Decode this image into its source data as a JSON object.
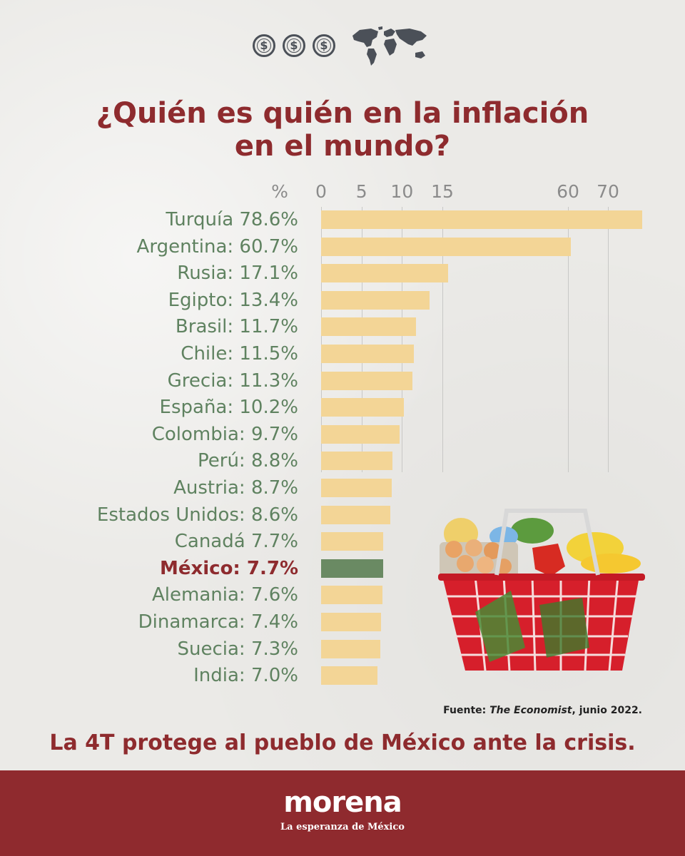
{
  "title": {
    "line1": "¿Quién es quién en la inflación",
    "line2": "en el mundo?"
  },
  "icons": {
    "coins": [
      "dollar-coin-icon",
      "dollar-coin-icon",
      "dollar-coin-icon"
    ],
    "coin_symbol": "$",
    "world": "world-map-icon",
    "basket": "shopping-basket-icon"
  },
  "colors": {
    "title": "#8e2b2e",
    "label": "#5f8260",
    "bar": "#f3d596",
    "highlight_bar": "#6a8a63",
    "footer": "#8f2a2e"
  },
  "chart_data": {
    "type": "bar",
    "orientation": "horizontal",
    "unit_label": "%",
    "x_ticks": [
      0,
      5,
      10,
      15,
      60,
      70
    ],
    "grid": true,
    "categories": [
      "Turquía",
      "Argentina",
      "Rusia",
      "Egipto",
      "Brasil",
      "Chile",
      "Grecia",
      "España",
      "Colombia",
      "Perú",
      "Austria",
      "Estados Unidos",
      "Canadá",
      "México",
      "Alemania",
      "Dinamarca",
      "Suecia",
      "India"
    ],
    "labels": [
      "Turquía 78.6%",
      "Argentina: 60.7%",
      "Rusia: 17.1%",
      "Egipto: 13.4%",
      "Brasil: 11.7%",
      "Chile: 11.5%",
      "Grecia: 11.3%",
      "España: 10.2%",
      "Colombia: 9.7%",
      "Perú: 8.8%",
      "Austria: 8.7%",
      "Estados Unidos: 8.6%",
      "Canadá 7.7%",
      "México: 7.7%",
      "Alemania: 7.6%",
      "Dinamarca: 7.4%",
      "Suecia: 7.3%",
      "India: 7.0%"
    ],
    "values": [
      78.6,
      60.7,
      17.1,
      13.4,
      11.7,
      11.5,
      11.3,
      10.2,
      9.7,
      8.8,
      8.7,
      8.6,
      7.7,
      7.7,
      7.6,
      7.4,
      7.3,
      7.0
    ],
    "highlight": "México"
  },
  "source": {
    "prefix": "Fuente: ",
    "publication": "The Economist",
    "suffix": ", junio 2022."
  },
  "slogan": "La 4T protege al pueblo de México ante la crisis.",
  "footer": {
    "brand": "morena",
    "tagline": "La esperanza de México"
  }
}
